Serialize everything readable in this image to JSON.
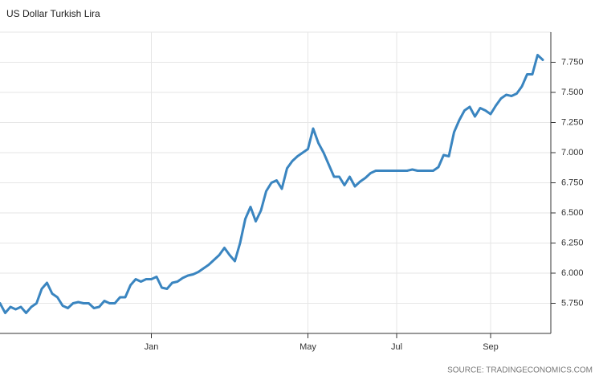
{
  "chart_data": {
    "type": "line",
    "title": "US Dollar Turkish Lira",
    "source": "SOURCE: TRADINGECONOMICS.COM",
    "color": "#3a85c0",
    "grid": true,
    "categories": [
      null,
      null,
      null,
      null,
      null,
      null,
      null,
      null,
      null,
      null,
      null,
      null,
      null,
      null,
      null,
      null,
      null,
      null,
      null,
      null,
      null,
      null,
      null,
      null,
      null,
      null,
      null,
      null,
      null,
      "Jan",
      null,
      null,
      null,
      null,
      null,
      null,
      null,
      null,
      null,
      null,
      null,
      null,
      null,
      null,
      null,
      null,
      null,
      null,
      null,
      null,
      null,
      null,
      null,
      null,
      null,
      null,
      null,
      null,
      null,
      "May",
      null,
      null,
      null,
      null,
      null,
      null,
      null,
      null,
      null,
      null,
      null,
      null,
      null,
      null,
      null,
      null,
      "Jul",
      null,
      null,
      null,
      null,
      null,
      null,
      null,
      null,
      null,
      null,
      null,
      null,
      null,
      null,
      null,
      null,
      null,
      "Sep",
      null,
      null,
      null,
      null,
      null,
      null,
      null,
      null,
      null,
      null
    ],
    "values": [
      5.75,
      5.67,
      5.72,
      5.7,
      5.72,
      5.67,
      5.72,
      5.75,
      5.87,
      5.92,
      5.83,
      5.8,
      5.73,
      5.71,
      5.75,
      5.76,
      5.75,
      5.75,
      5.71,
      5.72,
      5.77,
      5.75,
      5.75,
      5.8,
      5.8,
      5.9,
      5.95,
      5.93,
      5.95,
      5.95,
      5.97,
      5.88,
      5.87,
      5.92,
      5.93,
      5.96,
      5.98,
      5.99,
      6.01,
      6.04,
      6.07,
      6.11,
      6.15,
      6.21,
      6.15,
      6.1,
      6.25,
      6.45,
      6.55,
      6.43,
      6.52,
      6.68,
      6.75,
      6.77,
      6.7,
      6.87,
      6.93,
      6.97,
      7.0,
      7.03,
      7.2,
      7.08,
      7.0,
      6.9,
      6.8,
      6.8,
      6.73,
      6.8,
      6.72,
      6.76,
      6.79,
      6.83,
      6.85,
      6.85,
      6.85,
      6.85,
      6.85,
      6.85,
      6.85,
      6.86,
      6.85,
      6.85,
      6.85,
      6.85,
      6.88,
      6.98,
      6.97,
      7.17,
      7.27,
      7.35,
      7.38,
      7.3,
      7.37,
      7.35,
      7.32,
      7.39,
      7.45,
      7.48,
      7.47,
      7.49,
      7.55,
      7.65,
      7.65,
      7.81,
      7.77
    ],
    "ylim": [
      5.5,
      8.0
    ],
    "yticks": [
      {
        "value": 5.75,
        "label": "5.750"
      },
      {
        "value": 6.0,
        "label": "6.000"
      },
      {
        "value": 6.25,
        "label": "6.250"
      },
      {
        "value": 6.5,
        "label": "6.500"
      },
      {
        "value": 6.75,
        "label": "6.750"
      },
      {
        "value": 7.0,
        "label": "7.000"
      },
      {
        "value": 7.25,
        "label": "7.250"
      },
      {
        "value": 7.5,
        "label": "7.500"
      },
      {
        "value": 7.75,
        "label": "7.750"
      }
    ]
  }
}
